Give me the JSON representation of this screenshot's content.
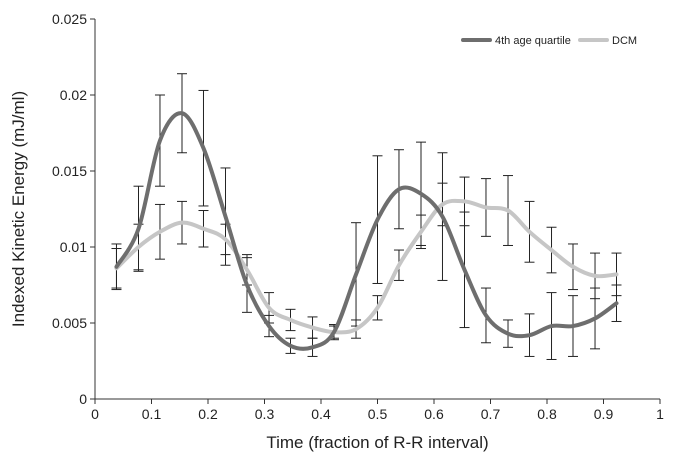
{
  "chart_data": {
    "type": "line",
    "title": "",
    "xlabel": "Time (fraction of R-R interval)",
    "ylabel": "Indexed Kinetic Energy (mJ/ml)",
    "xlim": [
      0,
      1
    ],
    "ylim": [
      0,
      0.025
    ],
    "x_ticks": [
      "0",
      "0.1",
      "0.2",
      "0.3",
      "0.4",
      "0.5",
      "0.6",
      "0.7",
      "0.8",
      "0.9",
      "1"
    ],
    "y_ticks": [
      "0",
      "0.005",
      "0.01",
      "0.015",
      "0.02",
      "0.025"
    ],
    "grid": false,
    "legend_position": "top-right",
    "series": [
      {
        "name": "4th age quartile",
        "color": "#6e6e6e",
        "x": [
          0.038,
          0.077,
          0.115,
          0.154,
          0.192,
          0.231,
          0.269,
          0.308,
          0.346,
          0.385,
          0.423,
          0.462,
          0.5,
          0.538,
          0.577,
          0.615,
          0.654,
          0.692,
          0.731,
          0.769,
          0.808,
          0.846,
          0.885,
          0.923
        ],
        "y": [
          0.0087,
          0.0112,
          0.017,
          0.0188,
          0.0165,
          0.012,
          0.0075,
          0.0048,
          0.0035,
          0.0034,
          0.0044,
          0.0082,
          0.0118,
          0.0138,
          0.0135,
          0.012,
          0.0085,
          0.0055,
          0.0043,
          0.0042,
          0.0048,
          0.0048,
          0.0053,
          0.0063
        ],
        "error": [
          0.0015,
          0.0028,
          0.003,
          0.0026,
          0.0038,
          0.0032,
          0.0018,
          0.0007,
          0.0005,
          0.0006,
          0.0004,
          0.0034,
          0.0042,
          0.0026,
          0.0034,
          0.0042,
          0.0038,
          0.0018,
          0.0009,
          0.0014,
          0.0022,
          0.002,
          0.002,
          0.0012
        ]
      },
      {
        "name": "DCM",
        "color": "#c6c6c6",
        "x": [
          0.038,
          0.077,
          0.115,
          0.154,
          0.192,
          0.231,
          0.269,
          0.308,
          0.346,
          0.385,
          0.423,
          0.462,
          0.5,
          0.538,
          0.577,
          0.615,
          0.654,
          0.692,
          0.731,
          0.769,
          0.808,
          0.846,
          0.885,
          0.923
        ],
        "y": [
          0.0086,
          0.01,
          0.011,
          0.0116,
          0.0112,
          0.0105,
          0.0085,
          0.006,
          0.0052,
          0.0047,
          0.0044,
          0.0046,
          0.006,
          0.0088,
          0.011,
          0.0128,
          0.013,
          0.0126,
          0.0124,
          0.011,
          0.0098,
          0.0087,
          0.0081,
          0.0082
        ],
        "error": [
          0.0013,
          0.0015,
          0.0018,
          0.0014,
          0.0012,
          0.001,
          0.001,
          0.001,
          0.0007,
          0.0007,
          0.0005,
          0.0006,
          0.0008,
          0.001,
          0.0011,
          0.0014,
          0.0016,
          0.0019,
          0.0023,
          0.002,
          0.0015,
          0.0015,
          0.0015,
          0.0014
        ]
      }
    ]
  }
}
